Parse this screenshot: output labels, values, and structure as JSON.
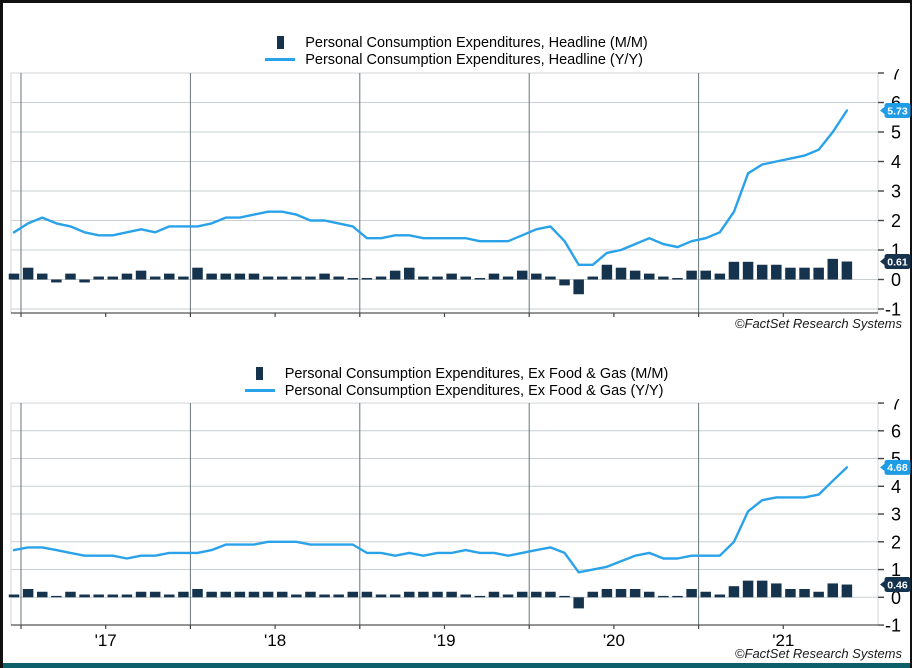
{
  "page": {
    "credit": "©FactSet Research Systems"
  },
  "colors": {
    "bar_series": "#16334e",
    "line_series": "#2aa2e9",
    "line_callout_bg": "#1e9ce5",
    "line_callout_text": "#ffffff",
    "bar_callout_bg": "#16334e",
    "bar_callout_text": "#ffffff",
    "footer_bar": "#0d5f6a"
  },
  "chart_data": [
    {
      "type": "bar+line",
      "title": "Personal Consumption Expenditures, Headline",
      "x_start_month": "2016-12",
      "x_end_month": "2021-11",
      "x_year_gridlines": [
        "2017",
        "2018",
        "2019",
        "2020",
        "2021"
      ],
      "x_year_labels": [
        "'17",
        "'18",
        "'19",
        "'20",
        "'21"
      ],
      "ylim": [
        -1,
        7
      ],
      "yticks": [
        7,
        6,
        5,
        4,
        3,
        2,
        1,
        0,
        -1
      ],
      "grid": true,
      "legend_position": "top",
      "series": [
        {
          "name": "Personal Consumption Expenditures, Headline (M/M)",
          "type": "bar",
          "end_label": "0.61",
          "values": [
            0.2,
            0.4,
            0.2,
            -0.1,
            0.2,
            -0.1,
            0.1,
            0.1,
            0.2,
            0.3,
            0.1,
            0.2,
            0.1,
            0.4,
            0.2,
            0.2,
            0.2,
            0.2,
            0.1,
            0.1,
            0.1,
            0.1,
            0.2,
            0.1,
            0.05,
            0.05,
            0.1,
            0.3,
            0.4,
            0.1,
            0.1,
            0.2,
            0.1,
            0.05,
            0.2,
            0.1,
            0.3,
            0.2,
            0.1,
            -0.2,
            -0.5,
            0.1,
            0.5,
            0.4,
            0.3,
            0.2,
            0.1,
            0.05,
            0.3,
            0.3,
            0.2,
            0.6,
            0.6,
            0.5,
            0.5,
            0.4,
            0.4,
            0.4,
            0.7,
            0.61
          ]
        },
        {
          "name": "Personal Consumption Expenditures, Headline (Y/Y)",
          "type": "line",
          "end_label": "5.73",
          "values": [
            1.6,
            1.9,
            2.1,
            1.9,
            1.8,
            1.6,
            1.5,
            1.5,
            1.6,
            1.7,
            1.6,
            1.8,
            1.8,
            1.8,
            1.9,
            2.1,
            2.1,
            2.2,
            2.3,
            2.3,
            2.2,
            2.0,
            2.0,
            1.9,
            1.8,
            1.4,
            1.4,
            1.5,
            1.5,
            1.4,
            1.4,
            1.4,
            1.4,
            1.3,
            1.3,
            1.3,
            1.5,
            1.7,
            1.8,
            1.3,
            0.5,
            0.5,
            0.9,
            1.0,
            1.2,
            1.4,
            1.2,
            1.1,
            1.3,
            1.4,
            1.6,
            2.3,
            3.6,
            3.9,
            4.0,
            4.1,
            4.2,
            4.4,
            5.0,
            5.73
          ]
        }
      ]
    },
    {
      "type": "bar+line",
      "title": "Personal Consumption Expenditures, Ex Food & Gas",
      "x_start_month": "2016-12",
      "x_end_month": "2021-11",
      "x_year_gridlines": [
        "2017",
        "2018",
        "2019",
        "2020",
        "2021"
      ],
      "x_year_labels": [
        "'17",
        "'18",
        "'19",
        "'20",
        "'21"
      ],
      "ylim": [
        -1,
        7
      ],
      "yticks": [
        7,
        6,
        5,
        4,
        3,
        2,
        1,
        0,
        -1
      ],
      "grid": true,
      "legend_position": "top",
      "series": [
        {
          "name": "Personal Consumption Expenditures, Ex Food & Gas (M/M)",
          "type": "bar",
          "end_label": "0.46",
          "values": [
            0.1,
            0.3,
            0.2,
            0.05,
            0.2,
            0.1,
            0.1,
            0.1,
            0.1,
            0.2,
            0.2,
            0.1,
            0.2,
            0.3,
            0.2,
            0.2,
            0.2,
            0.2,
            0.2,
            0.2,
            0.1,
            0.2,
            0.1,
            0.1,
            0.2,
            0.2,
            0.1,
            0.1,
            0.2,
            0.2,
            0.2,
            0.2,
            0.1,
            0.05,
            0.2,
            0.1,
            0.2,
            0.2,
            0.2,
            0.05,
            -0.4,
            0.2,
            0.3,
            0.3,
            0.3,
            0.2,
            0.05,
            0.05,
            0.3,
            0.2,
            0.1,
            0.4,
            0.6,
            0.6,
            0.5,
            0.3,
            0.3,
            0.2,
            0.5,
            0.46
          ]
        },
        {
          "name": "Personal Consumption Expenditures, Ex Food & Gas (Y/Y)",
          "type": "line",
          "end_label": "4.68",
          "values": [
            1.7,
            1.8,
            1.8,
            1.7,
            1.6,
            1.5,
            1.5,
            1.5,
            1.4,
            1.5,
            1.5,
            1.6,
            1.6,
            1.6,
            1.7,
            1.9,
            1.9,
            1.9,
            2.0,
            2.0,
            2.0,
            1.9,
            1.9,
            1.9,
            1.9,
            1.6,
            1.6,
            1.5,
            1.6,
            1.5,
            1.6,
            1.6,
            1.7,
            1.6,
            1.6,
            1.5,
            1.6,
            1.7,
            1.8,
            1.6,
            0.9,
            1.0,
            1.1,
            1.3,
            1.5,
            1.6,
            1.4,
            1.4,
            1.5,
            1.5,
            1.5,
            2.0,
            3.1,
            3.5,
            3.6,
            3.6,
            3.6,
            3.7,
            4.2,
            4.68
          ]
        }
      ]
    }
  ]
}
